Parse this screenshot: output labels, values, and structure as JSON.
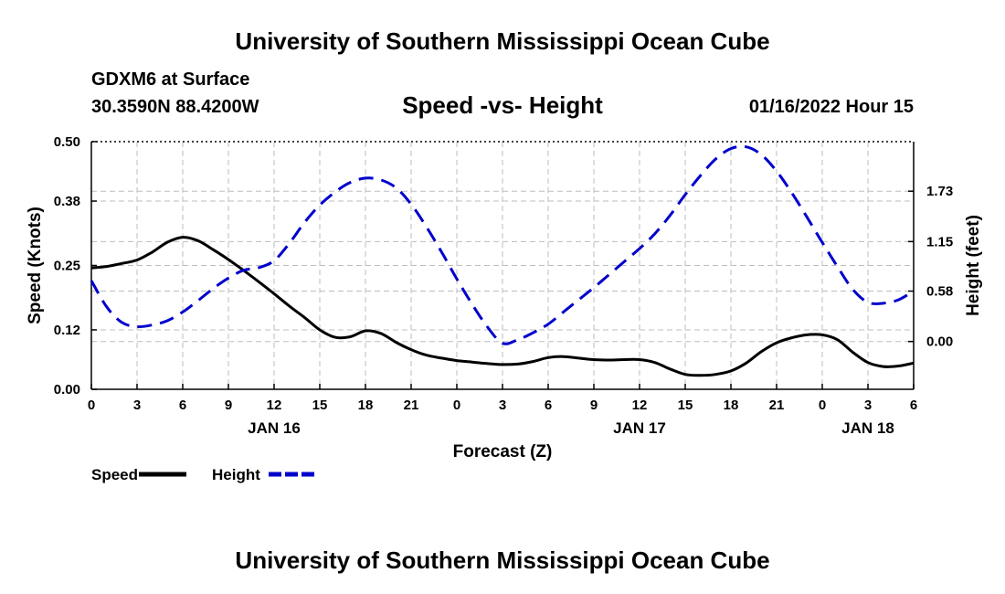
{
  "page": {
    "title_top": "University of Southern Mississippi Ocean Cube",
    "title_bottom": "University of Southern Mississippi Ocean Cube",
    "station": "GDXM6 at Surface",
    "coords": "30.3590N  88.4200W",
    "subtitle": "Speed -vs- Height",
    "timestamp": "01/16/2022 Hour 15"
  },
  "chart_data": {
    "type": "line",
    "title": "Speed -vs- Height",
    "xlabel": "Forecast (Z)",
    "ylabel_left": "Speed (Knots)",
    "ylabel_right": "Height (feet)",
    "x_range": [
      0,
      54
    ],
    "x_ticks": [
      0,
      3,
      6,
      9,
      12,
      15,
      18,
      21,
      24,
      27,
      30,
      33,
      36,
      39,
      42,
      45,
      48,
      51,
      54
    ],
    "x_tick_labels": [
      "0",
      "3",
      "6",
      "9",
      "12",
      "15",
      "18",
      "21",
      "0",
      "3",
      "6",
      "9",
      "12",
      "15",
      "18",
      "21",
      "0",
      "3",
      "6"
    ],
    "date_labels": [
      {
        "x": 12,
        "label": "JAN 16"
      },
      {
        "x": 36,
        "label": "JAN 17"
      },
      {
        "x": 51,
        "label": "JAN 18"
      }
    ],
    "y_left": {
      "min": 0,
      "max": 0.5,
      "ticks": [
        0.0,
        0.12,
        0.25,
        0.38,
        0.5
      ],
      "tick_labels": [
        "0.00",
        "0.12",
        "0.25",
        "0.38",
        "0.50"
      ]
    },
    "y_right": {
      "min": -0.55,
      "max": 2.3,
      "ticks": [
        0.0,
        0.58,
        1.15,
        1.73
      ],
      "tick_labels": [
        "0.00",
        "0.58",
        "1.15",
        "1.73"
      ]
    },
    "grid": true,
    "series": [
      {
        "name": "Speed",
        "axis": "left",
        "color": "#000000",
        "dash": "solid",
        "x": [
          0,
          1,
          2,
          3,
          4,
          5,
          6,
          7,
          8,
          9,
          10,
          11,
          12,
          13,
          14,
          15,
          16,
          17,
          18,
          19,
          20,
          21,
          22,
          23,
          24,
          25,
          26,
          27,
          28,
          29,
          30,
          31,
          32,
          33,
          34,
          35,
          36,
          37,
          38,
          39,
          40,
          41,
          42,
          43,
          44,
          45,
          46,
          47,
          48,
          49,
          50,
          51,
          52,
          53,
          54
        ],
        "values": [
          0.245,
          0.248,
          0.254,
          0.261,
          0.277,
          0.297,
          0.307,
          0.3,
          0.282,
          0.262,
          0.24,
          0.217,
          0.193,
          0.168,
          0.145,
          0.12,
          0.105,
          0.106,
          0.118,
          0.113,
          0.095,
          0.08,
          0.069,
          0.063,
          0.058,
          0.055,
          0.052,
          0.05,
          0.051,
          0.056,
          0.064,
          0.066,
          0.063,
          0.06,
          0.059,
          0.06,
          0.06,
          0.054,
          0.041,
          0.03,
          0.028,
          0.03,
          0.037,
          0.053,
          0.076,
          0.094,
          0.104,
          0.11,
          0.11,
          0.1,
          0.075,
          0.054,
          0.046,
          0.047,
          0.053
        ]
      },
      {
        "name": "Height",
        "axis": "right",
        "color": "#0000cc",
        "dash": "dashed",
        "x": [
          0,
          1,
          2,
          3,
          4,
          5,
          6,
          7,
          8,
          9,
          10,
          11,
          12,
          13,
          14,
          15,
          16,
          17,
          18,
          19,
          20,
          21,
          22,
          23,
          24,
          25,
          26,
          27,
          28,
          29,
          30,
          31,
          32,
          33,
          34,
          35,
          36,
          37,
          38,
          39,
          40,
          41,
          42,
          43,
          44,
          45,
          46,
          47,
          48,
          49,
          50,
          51,
          52,
          53,
          54
        ],
        "values": [
          0.7,
          0.4,
          0.22,
          0.17,
          0.19,
          0.24,
          0.34,
          0.47,
          0.61,
          0.73,
          0.82,
          0.85,
          0.93,
          1.13,
          1.37,
          1.57,
          1.72,
          1.83,
          1.88,
          1.86,
          1.77,
          1.58,
          1.32,
          1.03,
          0.72,
          0.43,
          0.17,
          -0.02,
          0.02,
          0.1,
          0.2,
          0.34,
          0.48,
          0.62,
          0.77,
          0.92,
          1.07,
          1.24,
          1.45,
          1.69,
          1.91,
          2.1,
          2.22,
          2.24,
          2.15,
          1.96,
          1.71,
          1.43,
          1.14,
          0.86,
          0.6,
          0.45,
          0.44,
          0.48,
          0.58
        ]
      }
    ],
    "legend": [
      {
        "label": "Speed",
        "color": "#000000",
        "dash": "solid"
      },
      {
        "label": "Height",
        "color": "#0000cc",
        "dash": "dashed"
      }
    ]
  }
}
